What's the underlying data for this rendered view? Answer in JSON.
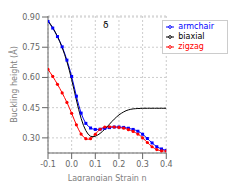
{
  "chart_data": {
    "type": "line",
    "xlabel": "Lagrangian Strain η",
    "ylabel": "Buckling height (Å)",
    "xlim": [
      -0.1,
      0.4
    ],
    "ylim": [
      0.225,
      0.905
    ],
    "xticks": [
      -0.1,
      {
        "value": 0.0,
        "label": "0.0"
      },
      0.1,
      0.2,
      0.3,
      0.4
    ],
    "yticks": [
      {
        "value": 0.3,
        "label": "0.30"
      },
      0.45,
      {
        "value": 0.6,
        "label": "0.60"
      },
      0.75,
      {
        "value": 0.9,
        "label": "0.90"
      }
    ],
    "grid": true,
    "legend": "upper right",
    "annotations": [
      "δ"
    ],
    "x": [
      -0.1,
      -0.09,
      -0.08,
      -0.07,
      -0.06,
      -0.05,
      -0.04,
      -0.03,
      -0.02,
      -0.01,
      0.0,
      0.01,
      0.02,
      0.03,
      0.04,
      0.05,
      0.06,
      0.07,
      0.08,
      0.09,
      0.1,
      0.11,
      0.12,
      0.13,
      0.14,
      0.15,
      0.16,
      0.17,
      0.18,
      0.19,
      0.2,
      0.21,
      0.22,
      0.23,
      0.24,
      0.25,
      0.26,
      0.27,
      0.28,
      0.29,
      0.3,
      0.31,
      0.32,
      0.33,
      0.34,
      0.35,
      0.36,
      0.37,
      0.38,
      0.39,
      0.4
    ],
    "series": [
      {
        "name": "armchair",
        "color": "blue",
        "marker": "square",
        "values": [
          0.878,
          0.862,
          0.845,
          0.825,
          0.803,
          0.779,
          0.752,
          0.721,
          0.686,
          0.648,
          0.605,
          0.557,
          0.507,
          0.462,
          0.423,
          0.394,
          0.372,
          0.358,
          0.349,
          0.344,
          0.342,
          0.342,
          0.343,
          0.345,
          0.347,
          0.349,
          0.351,
          0.353,
          0.354,
          0.354,
          0.354,
          0.353,
          0.352,
          0.35,
          0.348,
          0.345,
          0.342,
          0.338,
          0.333,
          0.327,
          0.318,
          0.308,
          0.297,
          0.286,
          0.275,
          0.265,
          0.256,
          0.25,
          0.245,
          0.241,
          0.238
        ]
      },
      {
        "name": "zigzag",
        "color": "red",
        "marker": "circle",
        "values": [
          0.64,
          0.623,
          0.605,
          0.586,
          0.566,
          0.545,
          0.523,
          0.5,
          0.476,
          0.45,
          0.422,
          0.393,
          0.365,
          0.34,
          0.319,
          0.305,
          0.296,
          0.293,
          0.296,
          0.305,
          0.318,
          0.332,
          0.343,
          0.35,
          0.354,
          0.355,
          0.355,
          0.355,
          0.354,
          0.353,
          0.352,
          0.35,
          0.348,
          0.345,
          0.341,
          0.337,
          0.332,
          0.326,
          0.319,
          0.311,
          0.3,
          0.289,
          0.277,
          0.266,
          0.256,
          0.248,
          0.242,
          0.238,
          0.236,
          0.235,
          0.235
        ]
      },
      {
        "name": "biaxial",
        "color": "black",
        "marker": "none",
        "values": [
          0.882,
          0.865,
          0.847,
          0.826,
          0.803,
          0.777,
          0.748,
          0.715,
          0.678,
          0.636,
          0.589,
          0.539,
          0.488,
          0.44,
          0.397,
          0.362,
          0.336,
          0.318,
          0.308,
          0.306,
          0.308,
          0.314,
          0.322,
          0.332,
          0.343,
          0.355,
          0.368,
          0.381,
          0.393,
          0.404,
          0.414,
          0.422,
          0.429,
          0.435,
          0.439,
          0.442,
          0.444,
          0.445,
          0.446,
          0.446,
          0.447,
          0.447,
          0.447,
          0.447,
          0.447,
          0.447,
          0.447,
          0.447,
          0.447,
          0.447,
          0.447
        ]
      }
    ]
  }
}
